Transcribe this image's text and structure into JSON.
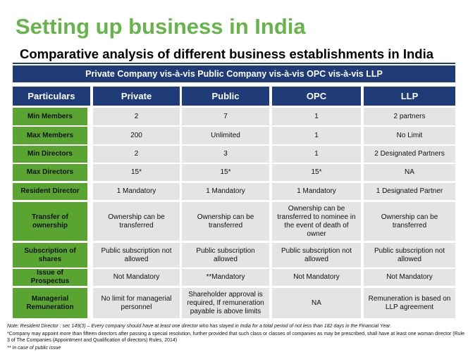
{
  "header": {
    "title": "Setting up business in India",
    "subtitle": "Comparative analysis of different business establishments in India"
  },
  "table": {
    "banner": "Private Company vis-à-vis Public Company vis-à-vis OPC vis-à-vis LLP",
    "columns": [
      "Particulars",
      "Private",
      "Public",
      "OPC",
      "LLP"
    ],
    "rows": [
      {
        "label": "Min Members",
        "cells": [
          "2",
          "7",
          "1",
          "2 partners"
        ]
      },
      {
        "label": "Max Members",
        "cells": [
          "200",
          "Unlimited",
          "1",
          "No Limit"
        ]
      },
      {
        "label": "Min Directors",
        "cells": [
          "2",
          "3",
          "1",
          "2 Designated Partners"
        ]
      },
      {
        "label": "Max Directors",
        "cells": [
          "15*",
          "15*",
          "15*",
          "NA"
        ]
      },
      {
        "label": "Resident Director",
        "cells": [
          "1 Mandatory",
          "1 Mandatory",
          "1 Mandatory",
          "1 Designated Partner"
        ]
      },
      {
        "label": "Transfer of ownership",
        "cells": [
          "Ownership can be transferred",
          "Ownership can be transferred",
          "Ownership can be transferred to nominee in the event of death of owner",
          "Ownership can be transferred"
        ]
      },
      {
        "label": "Subscription of shares",
        "cells": [
          "Public subscription not allowed",
          "Public subscription allowed",
          "Public subscription not allowed",
          "Public subscription not allowed"
        ]
      },
      {
        "label": "Issue of Prospectus",
        "cells": [
          "Not Mandatory",
          "**Mandatory",
          "Not Mandatory",
          "Not Mandatory"
        ]
      },
      {
        "label": "Managerial Remuneration",
        "cells": [
          "No limit for managerial personnel",
          "Shareholder approval is required, If remuneration payable is above limits",
          "NA",
          "Remuneration is based on LLP agreement"
        ]
      }
    ]
  },
  "notes": [
    "Note: Resident Director : sec 149(3) – Every company should have at least one director who has stayed in India for a total period of not less than 182 days in the Financial Year.",
    "*Company may appoint more than fifteen directors after passing a special resolution, further provided that such class or classes of companies as may be prescribed, shall have at least one woman director (Rule 3 of The Companies (Appointment and Qualification of directors) Rules, 2014)",
    "** In case of public issue"
  ]
}
